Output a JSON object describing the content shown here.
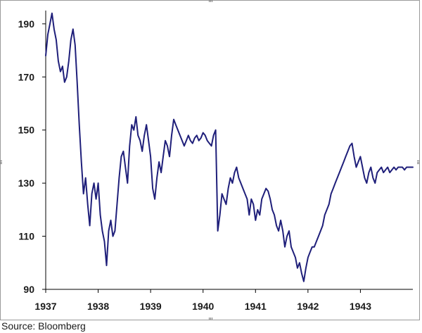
{
  "chart_data": {
    "type": "line",
    "title": "",
    "xlabel": "",
    "ylabel": "",
    "ylim": [
      90,
      195
    ],
    "xlim": [
      1937.0,
      1944.0
    ],
    "yticks": [
      90,
      110,
      130,
      150,
      170,
      190
    ],
    "xticks": [
      1937,
      1938,
      1939,
      1940,
      1941,
      1942,
      1943
    ],
    "grid": false,
    "legend": "none",
    "line_color": "#1f1f7a",
    "series": [
      {
        "x": [
          1937.0,
          1937.04,
          1937.08,
          1937.12,
          1937.16,
          1937.2,
          1937.24,
          1937.28,
          1937.32,
          1937.36,
          1937.4,
          1937.44,
          1937.48,
          1937.52,
          1937.56,
          1937.6,
          1937.64,
          1937.68,
          1937.72,
          1937.76,
          1937.8,
          1937.84,
          1937.88,
          1937.92,
          1937.96,
          1938.0,
          1938.04,
          1938.08,
          1938.12,
          1938.16,
          1938.2,
          1938.24,
          1938.28,
          1938.32,
          1938.36,
          1938.4,
          1938.44,
          1938.48,
          1938.52,
          1938.56,
          1938.6,
          1938.64,
          1938.68,
          1938.72,
          1938.76,
          1938.8,
          1938.84,
          1938.88,
          1938.92,
          1938.96,
          1939.0,
          1939.04,
          1939.08,
          1939.12,
          1939.16,
          1939.2,
          1939.24,
          1939.28,
          1939.32,
          1939.36,
          1939.4,
          1939.44,
          1939.48,
          1939.52,
          1939.56,
          1939.6,
          1939.64,
          1939.68,
          1939.72,
          1939.76,
          1939.8,
          1939.84,
          1939.88,
          1939.92,
          1939.96,
          1940.0,
          1940.04,
          1940.08,
          1940.12,
          1940.16,
          1940.2,
          1940.24,
          1940.28,
          1940.32,
          1940.36,
          1940.4,
          1940.44,
          1940.48,
          1940.52,
          1940.56,
          1940.6,
          1940.64,
          1940.68,
          1940.72,
          1940.76,
          1940.8,
          1940.84,
          1940.88,
          1940.92,
          1940.96,
          1941.0,
          1941.04,
          1941.08,
          1941.12,
          1941.16,
          1941.2,
          1941.24,
          1941.28,
          1941.32,
          1941.36,
          1941.4,
          1941.44,
          1941.48,
          1941.52,
          1941.56,
          1941.6,
          1941.64,
          1941.68,
          1941.72,
          1941.76,
          1941.8,
          1941.84,
          1941.88,
          1941.92,
          1941.96,
          1942.0,
          1942.04,
          1942.08,
          1942.12,
          1942.16,
          1942.2,
          1942.24,
          1942.28,
          1942.32,
          1942.36,
          1942.4,
          1942.44,
          1942.48,
          1942.52,
          1942.56,
          1942.6,
          1942.64,
          1942.68,
          1942.72,
          1942.76,
          1942.8,
          1942.84,
          1942.88,
          1942.92,
          1942.96,
          1943.0,
          1943.04,
          1943.08,
          1943.12,
          1943.16,
          1943.2,
          1943.24,
          1943.28,
          1943.32,
          1943.36,
          1943.4,
          1943.44,
          1943.48,
          1943.52,
          1943.56,
          1943.6,
          1943.64,
          1943.68,
          1943.72,
          1943.76,
          1943.8,
          1943.84,
          1943.88,
          1943.92,
          1943.96,
          1944.0
        ],
        "values": [
          178,
          186,
          190,
          194,
          188,
          184,
          176,
          172,
          174,
          168,
          170,
          176,
          184,
          188,
          182,
          168,
          152,
          138,
          126,
          132,
          122,
          114,
          126,
          130,
          124,
          130,
          118,
          112,
          108,
          99,
          112,
          116,
          110,
          112,
          122,
          132,
          140,
          142,
          136,
          130,
          144,
          152,
          150,
          155,
          148,
          146,
          142,
          148,
          152,
          146,
          140,
          128,
          124,
          132,
          138,
          134,
          140,
          146,
          144,
          140,
          148,
          154,
          152,
          150,
          148,
          146,
          144,
          146,
          148,
          146,
          145,
          147,
          148,
          146,
          147,
          149,
          148,
          146,
          145,
          144,
          148,
          150,
          112,
          118,
          126,
          124,
          122,
          128,
          132,
          130,
          134,
          136,
          132,
          130,
          128,
          126,
          124,
          118,
          124,
          122,
          116,
          120,
          118,
          124,
          126,
          128,
          127,
          124,
          120,
          118,
          114,
          112,
          116,
          112,
          106,
          110,
          112,
          106,
          104,
          102,
          98,
          100,
          96,
          93,
          98,
          102,
          104,
          106,
          106,
          108,
          110,
          112,
          114,
          118,
          120,
          122,
          126,
          128,
          130,
          132,
          134,
          136,
          138,
          140,
          142,
          144,
          145,
          140,
          136,
          138,
          140,
          136,
          132,
          130,
          134,
          136,
          132,
          130,
          134,
          135,
          136,
          134,
          135,
          136,
          134,
          135,
          136,
          135,
          136,
          136,
          136,
          135,
          136,
          136,
          136,
          136
        ]
      }
    ]
  },
  "source_note": "Source: Bloomberg"
}
